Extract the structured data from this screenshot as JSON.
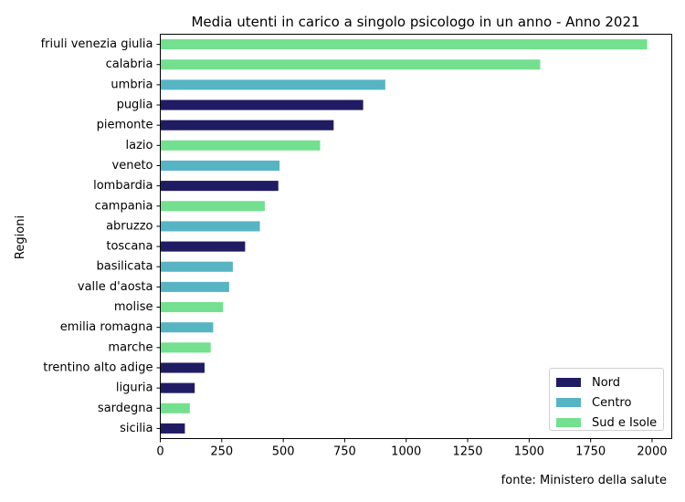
{
  "chart_data": {
    "type": "bar",
    "orientation": "horizontal",
    "title": "Media utenti in carico a singolo psicologo in un anno - Anno 2021",
    "xlabel": "",
    "ylabel": "Regioni",
    "xlim": [
      0,
      2080
    ],
    "xticks": [
      "0",
      "250",
      "500",
      "750",
      "1000",
      "1250",
      "1500",
      "1750",
      "2000"
    ],
    "grid": false,
    "legend_position": "lower-right",
    "source": "fonte: Ministero della salute",
    "legend": [
      {
        "name": "Nord",
        "color": "#201c63"
      },
      {
        "name": "Centro",
        "color": "#57b4c3"
      },
      {
        "name": "Sud e Isole",
        "color": "#73e08f"
      }
    ],
    "categories": [
      "friuli venezia giulia",
      "calabria",
      "umbria",
      "puglia",
      "piemonte",
      "lazio",
      "veneto",
      "lombardia",
      "campania",
      "abruzzo",
      "toscana",
      "basilicata",
      "valle d'aosta",
      "molise",
      "emilia romagna",
      "marche",
      "trentino alto adige",
      "liguria",
      "sardegna",
      "sicilia"
    ],
    "values": [
      1980,
      1545,
      915,
      825,
      705,
      650,
      485,
      480,
      425,
      405,
      345,
      295,
      280,
      255,
      215,
      205,
      180,
      140,
      120,
      100
    ],
    "groups": [
      "Sud e Isole",
      "Sud e Isole",
      "Centro",
      "Nord",
      "Nord",
      "Sud e Isole",
      "Centro",
      "Nord",
      "Sud e Isole",
      "Centro",
      "Nord",
      "Centro",
      "Centro",
      "Sud e Isole",
      "Centro",
      "Sud e Isole",
      "Nord",
      "Nord",
      "Sud e Isole",
      "Nord"
    ]
  }
}
